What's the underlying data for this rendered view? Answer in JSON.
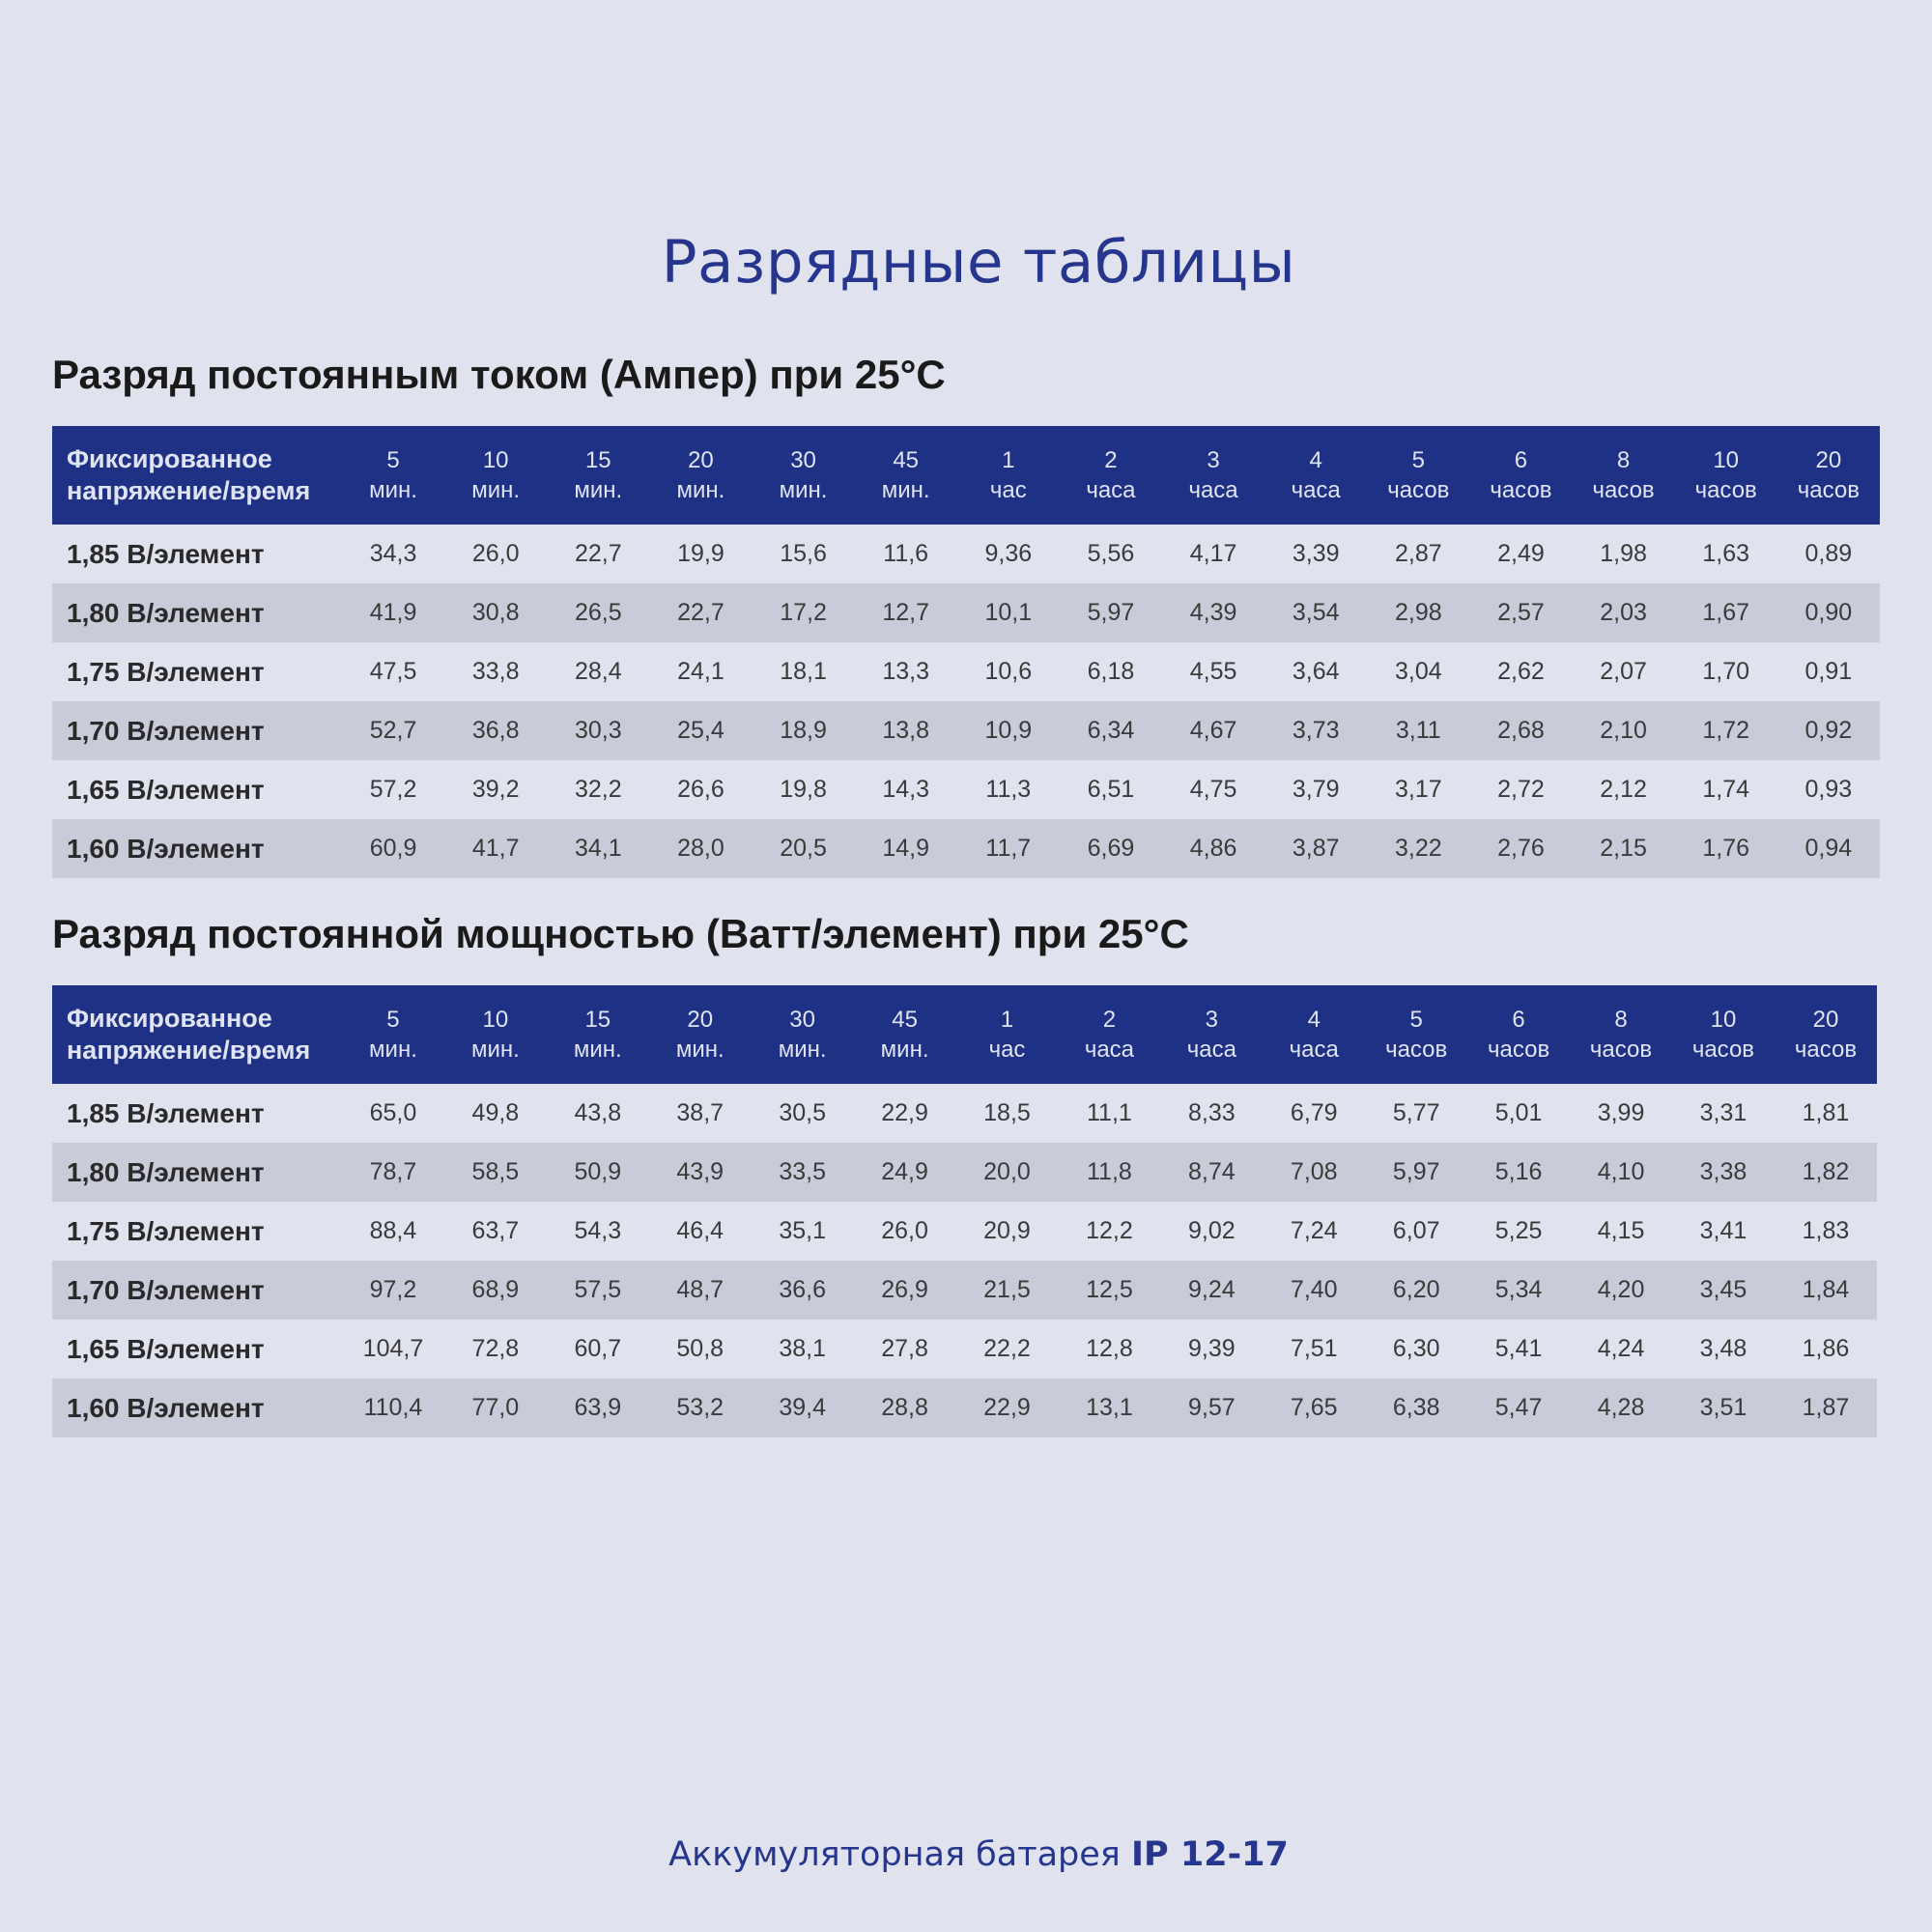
{
  "page_title": "Разрядные таблицы",
  "footer": {
    "text": "Аккумуляторная батарея",
    "model": "IP 12-17"
  },
  "header_columns": [
    {
      "l1": "5",
      "l2": "мин."
    },
    {
      "l1": "10",
      "l2": "мин."
    },
    {
      "l1": "15",
      "l2": "мин."
    },
    {
      "l1": "20",
      "l2": "мин."
    },
    {
      "l1": "30",
      "l2": "мин."
    },
    {
      "l1": "45",
      "l2": "мин."
    },
    {
      "l1": "1",
      "l2": "час"
    },
    {
      "l1": "2",
      "l2": "часа"
    },
    {
      "l1": "3",
      "l2": "часа"
    },
    {
      "l1": "4",
      "l2": "часа"
    },
    {
      "l1": "5",
      "l2": "часов"
    },
    {
      "l1": "6",
      "l2": "часов"
    },
    {
      "l1": "8",
      "l2": "часов"
    },
    {
      "l1": "10",
      "l2": "часов"
    },
    {
      "l1": "20",
      "l2": "часов"
    }
  ],
  "first_header": {
    "l1": "Фиксированное",
    "l2": "напряжение/время"
  },
  "tables": [
    {
      "title": "Разряд постоянным током (Ампер) при 25°C",
      "rows": [
        {
          "label": "1,85 В/элемент",
          "values": [
            "34,3",
            "26,0",
            "22,7",
            "19,9",
            "15,6",
            "11,6",
            "9,36",
            "5,56",
            "4,17",
            "3,39",
            "2,87",
            "2,49",
            "1,98",
            "1,63",
            "0,89"
          ]
        },
        {
          "label": "1,80 В/элемент",
          "values": [
            "41,9",
            "30,8",
            "26,5",
            "22,7",
            "17,2",
            "12,7",
            "10,1",
            "5,97",
            "4,39",
            "3,54",
            "2,98",
            "2,57",
            "2,03",
            "1,67",
            "0,90"
          ]
        },
        {
          "label": "1,75 В/элемент",
          "values": [
            "47,5",
            "33,8",
            "28,4",
            "24,1",
            "18,1",
            "13,3",
            "10,6",
            "6,18",
            "4,55",
            "3,64",
            "3,04",
            "2,62",
            "2,07",
            "1,70",
            "0,91"
          ]
        },
        {
          "label": "1,70 В/элемент",
          "values": [
            "52,7",
            "36,8",
            "30,3",
            "25,4",
            "18,9",
            "13,8",
            "10,9",
            "6,34",
            "4,67",
            "3,73",
            "3,11",
            "2,68",
            "2,10",
            "1,72",
            "0,92"
          ]
        },
        {
          "label": "1,65 В/элемент",
          "values": [
            "57,2",
            "39,2",
            "32,2",
            "26,6",
            "19,8",
            "14,3",
            "11,3",
            "6,51",
            "4,75",
            "3,79",
            "3,17",
            "2,72",
            "2,12",
            "1,74",
            "0,93"
          ]
        },
        {
          "label": "1,60 В/элемент",
          "values": [
            "60,9",
            "41,7",
            "34,1",
            "28,0",
            "20,5",
            "14,9",
            "11,7",
            "6,69",
            "4,86",
            "3,87",
            "3,22",
            "2,76",
            "2,15",
            "1,76",
            "0,94"
          ]
        }
      ]
    },
    {
      "title": "Разряд постоянной мощностью (Ватт/элемент) при 25°C",
      "rows": [
        {
          "label": "1,85 В/элемент",
          "values": [
            "65,0",
            "49,8",
            "43,8",
            "38,7",
            "30,5",
            "22,9",
            "18,5",
            "11,1",
            "8,33",
            "6,79",
            "5,77",
            "5,01",
            "3,99",
            "3,31",
            "1,81"
          ]
        },
        {
          "label": "1,80 В/элемент",
          "values": [
            "78,7",
            "58,5",
            "50,9",
            "43,9",
            "33,5",
            "24,9",
            "20,0",
            "11,8",
            "8,74",
            "7,08",
            "5,97",
            "5,16",
            "4,10",
            "3,38",
            "1,82"
          ]
        },
        {
          "label": "1,75 В/элемент",
          "values": [
            "88,4",
            "63,7",
            "54,3",
            "46,4",
            "35,1",
            "26,0",
            "20,9",
            "12,2",
            "9,02",
            "7,24",
            "6,07",
            "5,25",
            "4,15",
            "3,41",
            "1,83"
          ]
        },
        {
          "label": "1,70 В/элемент",
          "values": [
            "97,2",
            "68,9",
            "57,5",
            "48,7",
            "36,6",
            "26,9",
            "21,5",
            "12,5",
            "9,24",
            "7,40",
            "6,20",
            "5,34",
            "4,20",
            "3,45",
            "1,84"
          ]
        },
        {
          "label": "1,65 В/элемент",
          "values": [
            "104,7",
            "72,8",
            "60,7",
            "50,8",
            "38,1",
            "27,8",
            "22,2",
            "12,8",
            "9,39",
            "7,51",
            "6,30",
            "5,41",
            "4,24",
            "3,48",
            "1,86"
          ]
        },
        {
          "label": "1,60 В/элемент",
          "values": [
            "110,4",
            "77,0",
            "63,9",
            "53,2",
            "39,4",
            "28,8",
            "22,9",
            "13,1",
            "9,57",
            "7,65",
            "6,38",
            "5,47",
            "4,28",
            "3,51",
            "1,87"
          ]
        }
      ]
    }
  ],
  "colors": {
    "background": "#e0e3ed",
    "header_bg": "#1f3185",
    "accent_text": "#26368e",
    "stripe": "#c9ccd8"
  }
}
